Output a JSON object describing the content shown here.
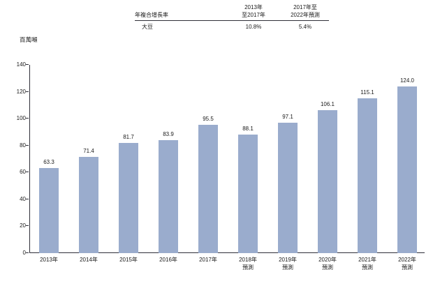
{
  "unit_label": "百萬噸",
  "cagr_table": {
    "header_label": "年複合增長率",
    "col1_line1": "2013年",
    "col1_line2": "至2017年",
    "col2_line1": "2017年至",
    "col2_line2": "2022年預測",
    "row_label": "大豆",
    "col1_value": "10.8%",
    "col2_value": "5.4%"
  },
  "chart_data": {
    "type": "bar",
    "title": "",
    "xlabel": "",
    "ylabel": "百萬噸",
    "ylim": [
      0,
      140
    ],
    "yticks": [
      0,
      20,
      40,
      60,
      80,
      100,
      120,
      140
    ],
    "grid": false,
    "legend": "none",
    "bar_color": "#9aaccd",
    "axis_color": "#2e2e38",
    "categories": [
      "2013年",
      "2014年",
      "2015年",
      "2016年",
      "2017年",
      "2018年\n預測",
      "2019年\n預測",
      "2020年\n預測",
      "2021年\n預測",
      "2022年\n預測"
    ],
    "values": [
      63.3,
      71.4,
      81.7,
      83.9,
      95.5,
      88.1,
      97.1,
      106.1,
      115.1,
      124.0
    ],
    "value_labels": [
      "63.3",
      "71.4",
      "81.7",
      "83.9",
      "95.5",
      "88.1",
      "97.1",
      "106.1",
      "115.1",
      "124.0"
    ]
  }
}
